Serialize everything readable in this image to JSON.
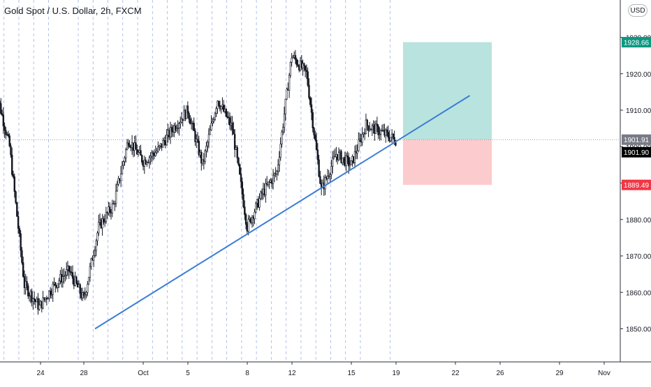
{
  "header": {
    "title": "Gold Spot / U.S. Dollar, 2h, FXCM",
    "currency": "USD"
  },
  "colors": {
    "candle": "#131722",
    "trendline": "#3b7ed4",
    "target_zone": "#b9e3de",
    "stop_zone": "#fccbcd",
    "target_badge": "#089981",
    "stop_badge": "#f23645",
    "price_badge": "#000000",
    "crosshair_badge": "#787b86",
    "session_line": "#7a8fe0"
  },
  "chart_data": {
    "type": "candlestick",
    "title": "Gold Spot / U.S. Dollar, 2h, FXCM",
    "y_ticks": [
      "1850.00",
      "1860.00",
      "1870.00",
      "1880.00",
      "1890.00",
      "1900.00",
      "1910.00",
      "1920.00",
      "1930.00"
    ],
    "x_ticks": [
      "24",
      "28",
      "Oct",
      "5",
      "8",
      "12",
      "15",
      "19",
      "22",
      "26",
      "29",
      "Nov"
    ],
    "ylim": [
      1843,
      1939
    ],
    "grid": false,
    "close_series": [
      {
        "date": "Sep 22",
        "close": 1917
      },
      {
        "date": "Sep 23",
        "close": 1900
      },
      {
        "date": "Sep 24",
        "close": 1862
      },
      {
        "date": "Sep 25",
        "close": 1856
      },
      {
        "date": "Sep 26",
        "close": 1862
      },
      {
        "date": "Sep 27",
        "close": 1866
      },
      {
        "date": "Sep 28",
        "close": 1858
      },
      {
        "date": "Sep 29",
        "close": 1878
      },
      {
        "date": "Sep 30",
        "close": 1884
      },
      {
        "date": "Oct 1",
        "close": 1902
      },
      {
        "date": "Oct 2",
        "close": 1896
      },
      {
        "date": "Oct 3",
        "close": 1899
      },
      {
        "date": "Oct 4",
        "close": 1905
      },
      {
        "date": "Oct 5",
        "close": 1910
      },
      {
        "date": "Oct 6",
        "close": 1895
      },
      {
        "date": "Oct 7",
        "close": 1913
      },
      {
        "date": "Oct 8",
        "close": 1905
      },
      {
        "date": "Oct 9",
        "close": 1878
      },
      {
        "date": "Oct 10",
        "close": 1887
      },
      {
        "date": "Oct 11",
        "close": 1893
      },
      {
        "date": "Oct 12",
        "close": 1925
      },
      {
        "date": "Oct 13",
        "close": 1920
      },
      {
        "date": "Oct 14",
        "close": 1888
      },
      {
        "date": "Oct 15",
        "close": 1898
      },
      {
        "date": "Oct 16",
        "close": 1895
      },
      {
        "date": "Oct 17",
        "close": 1906
      },
      {
        "date": "Oct 18",
        "close": 1904
      },
      {
        "date": "Oct 19",
        "close": 1901.9
      }
    ],
    "trendline": [
      {
        "date": "Sep 28",
        "price": 1850
      },
      {
        "date": "Oct 23",
        "price": 1914
      }
    ],
    "position": {
      "target": 1928.66,
      "entry": 1901.91,
      "stop": 1889.49
    },
    "price_labels": [
      {
        "label": "1928.66",
        "kind": "target"
      },
      {
        "label": "1901.91",
        "kind": "crosshair"
      },
      {
        "label": "1901.90",
        "kind": "price"
      },
      {
        "label": "1889.49",
        "kind": "stop"
      }
    ]
  }
}
